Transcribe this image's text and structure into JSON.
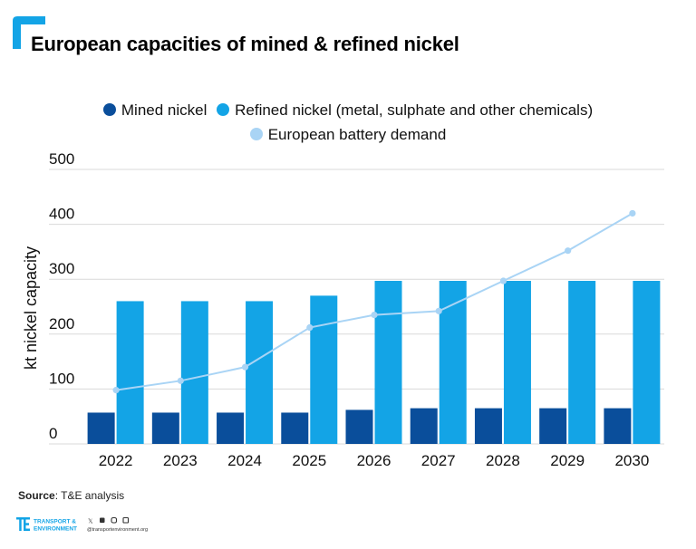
{
  "title": "European capacities of mined & refined nickel",
  "legend": [
    {
      "label": "Mined nickel",
      "color": "#0a4e9b"
    },
    {
      "label": "Refined nickel (metal, sulphate and other chemicals)",
      "color": "#13a4e6"
    },
    {
      "label": "European battery demand",
      "color": "#a9d4f5"
    }
  ],
  "source_label": "Source",
  "source_text": ": T&E analysis",
  "footer": {
    "brand_top": "TRANSPORT &",
    "brand_bottom": "ENVIRONMENT",
    "website": "@transportenvironment.org"
  },
  "colors": {
    "accent": "#13a4e6",
    "mined": "#0a4e9b",
    "refined": "#13a4e6",
    "demand": "#a9d4f5"
  },
  "chart_data": {
    "type": "bar",
    "categories": [
      "2022",
      "2023",
      "2024",
      "2025",
      "2026",
      "2027",
      "2028",
      "2029",
      "2030"
    ],
    "series": [
      {
        "name": "Mined nickel",
        "type": "bar",
        "values": [
          57,
          57,
          57,
          57,
          62,
          65,
          65,
          65,
          65
        ]
      },
      {
        "name": "Refined nickel (metal, sulphate and other chemicals)",
        "type": "bar",
        "values": [
          260,
          260,
          260,
          270,
          297,
          297,
          297,
          297,
          297
        ]
      },
      {
        "name": "European battery demand",
        "type": "line",
        "values": [
          98,
          115,
          140,
          212,
          235,
          242,
          297,
          352,
          420
        ]
      }
    ],
    "ylabel": "kt nickel capacity",
    "ylim": [
      0,
      500
    ],
    "yticks": [
      0,
      100,
      200,
      300,
      400,
      500
    ],
    "grid": true,
    "legend_position": "top"
  }
}
